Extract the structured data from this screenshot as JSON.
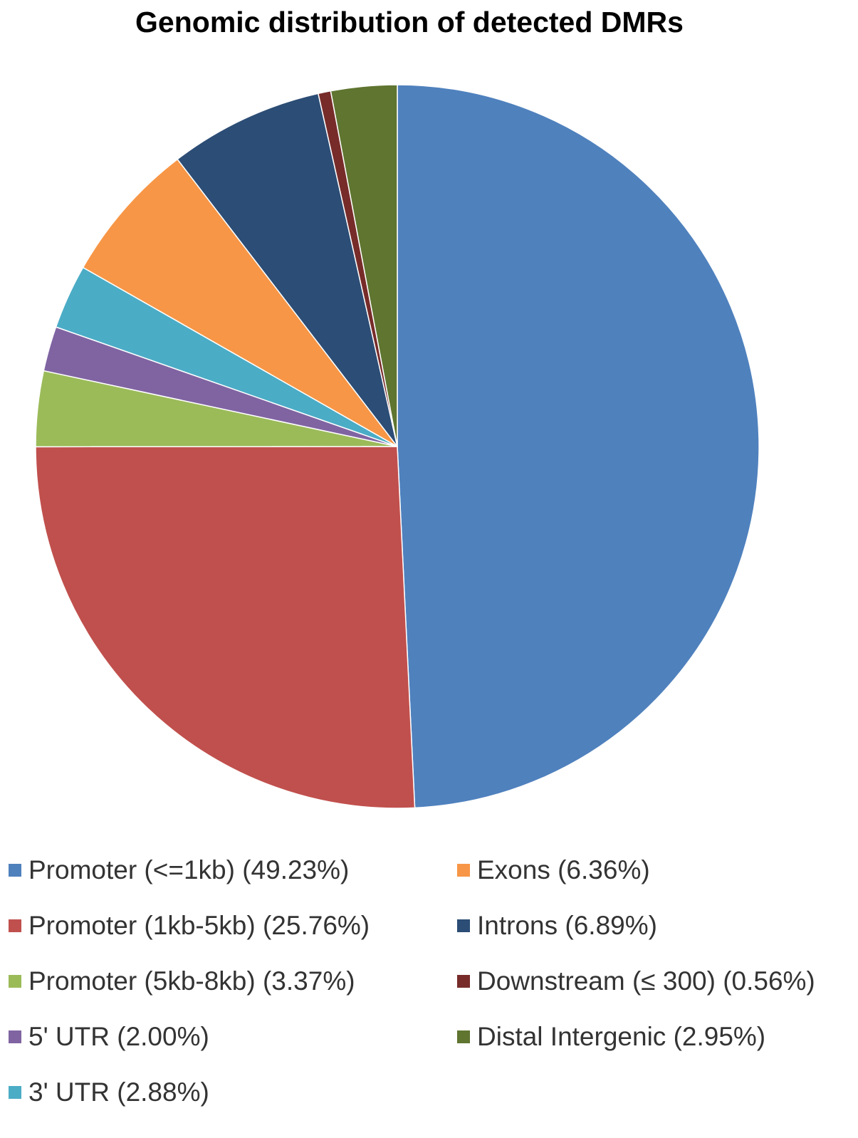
{
  "chart_data": {
    "type": "pie",
    "title": "Genomic distribution of detected DMRs",
    "legend_position": "bottom",
    "slices": [
      {
        "label": "Promoter (<=1kb) (49.23%)",
        "value": 49.23,
        "color": "#4F81BD"
      },
      {
        "label": "Promoter (1kb-5kb) (25.76%)",
        "value": 25.76,
        "color": "#C0504D"
      },
      {
        "label": "Promoter (5kb-8kb) (3.37%)",
        "value": 3.37,
        "color": "#9BBB59"
      },
      {
        "label": "5' UTR (2.00%)",
        "value": 2.0,
        "color": "#8064A2"
      },
      {
        "label": "3' UTR (2.88%)",
        "value": 2.88,
        "color": "#4BACC6"
      },
      {
        "label": "Exons (6.36%)",
        "value": 6.36,
        "color": "#F79646"
      },
      {
        "label": "Introns (6.89%)",
        "value": 6.89,
        "color": "#2C4D75"
      },
      {
        "label": "Downstream (≤ 300) (0.56%)",
        "value": 0.56,
        "color": "#772C2A"
      },
      {
        "label": "Distal Intergenic  (2.95%)",
        "value": 2.95,
        "color": "#5F7530"
      }
    ]
  }
}
